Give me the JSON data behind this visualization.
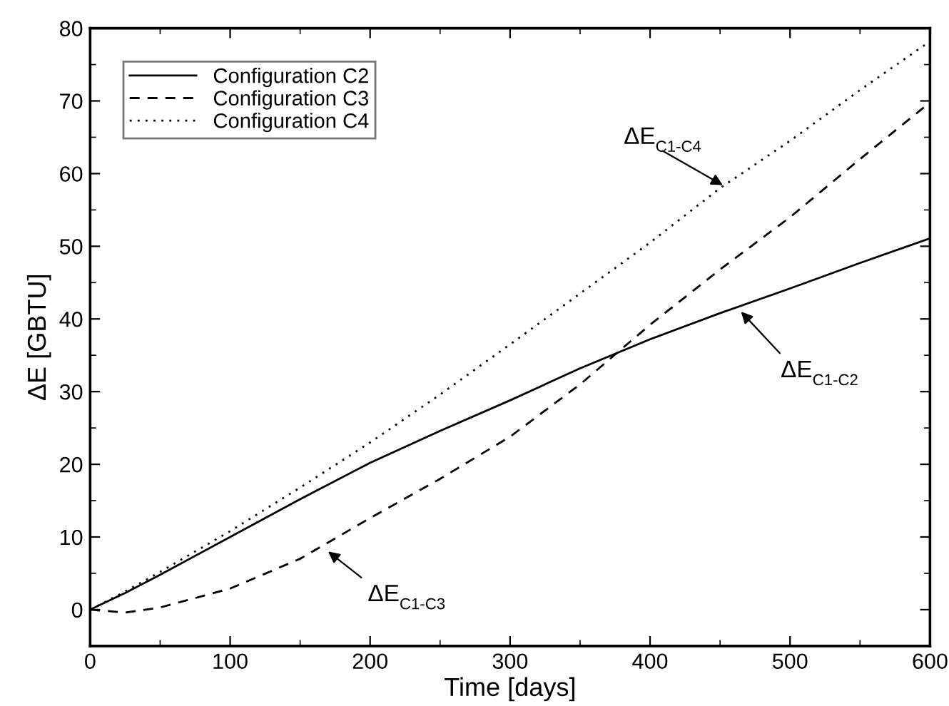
{
  "chart_data": {
    "type": "line",
    "xlabel": "Time [days]",
    "ylabel": "ΔE [GBTU]",
    "x": [
      0,
      25,
      50,
      100,
      150,
      200,
      250,
      300,
      350,
      400,
      450,
      500,
      550,
      600
    ],
    "series": [
      {
        "name": "Configuration C2",
        "color": "#000000",
        "line_style": "solid",
        "values": [
          0,
          2.3,
          4.8,
          10,
          15.2,
          20.2,
          24.6,
          28.8,
          33.2,
          37.2,
          40.8,
          44.2,
          47.7,
          51.1
        ]
      },
      {
        "name": "Configuration C3",
        "color": "#000000",
        "line_style": "dashed",
        "values": [
          0,
          -0.4,
          0.3,
          2.9,
          7,
          12.6,
          18,
          23.8,
          31,
          39.2,
          46.8,
          54,
          62,
          69.8
        ]
      },
      {
        "name": "Configuration C4",
        "color": "#000000",
        "line_style": "dotted",
        "values": [
          0,
          2.5,
          5.2,
          10.8,
          16.8,
          23,
          29.6,
          36.5,
          43.5,
          50.5,
          58,
          64.5,
          71.5,
          78.2
        ]
      }
    ],
    "xlim": [
      0,
      600
    ],
    "xticks": [
      0,
      100,
      200,
      300,
      400,
      500,
      600
    ],
    "ylim": [
      -5,
      80
    ],
    "yticks": [
      0,
      10,
      20,
      30,
      40,
      50,
      60,
      70,
      80
    ],
    "grid": false,
    "legend": "top left",
    "marker": "none",
    "annotations": [
      {
        "text": "ΔE$_{C1-C4}$",
        "x": 452,
        "y": 58.4
      },
      {
        "text": "ΔE$_{C1-C2}$",
        "x": 465,
        "y": 41
      },
      {
        "text": "ΔE$_{C1-C3}$",
        "x": 170,
        "y": 8
      }
    ]
  }
}
